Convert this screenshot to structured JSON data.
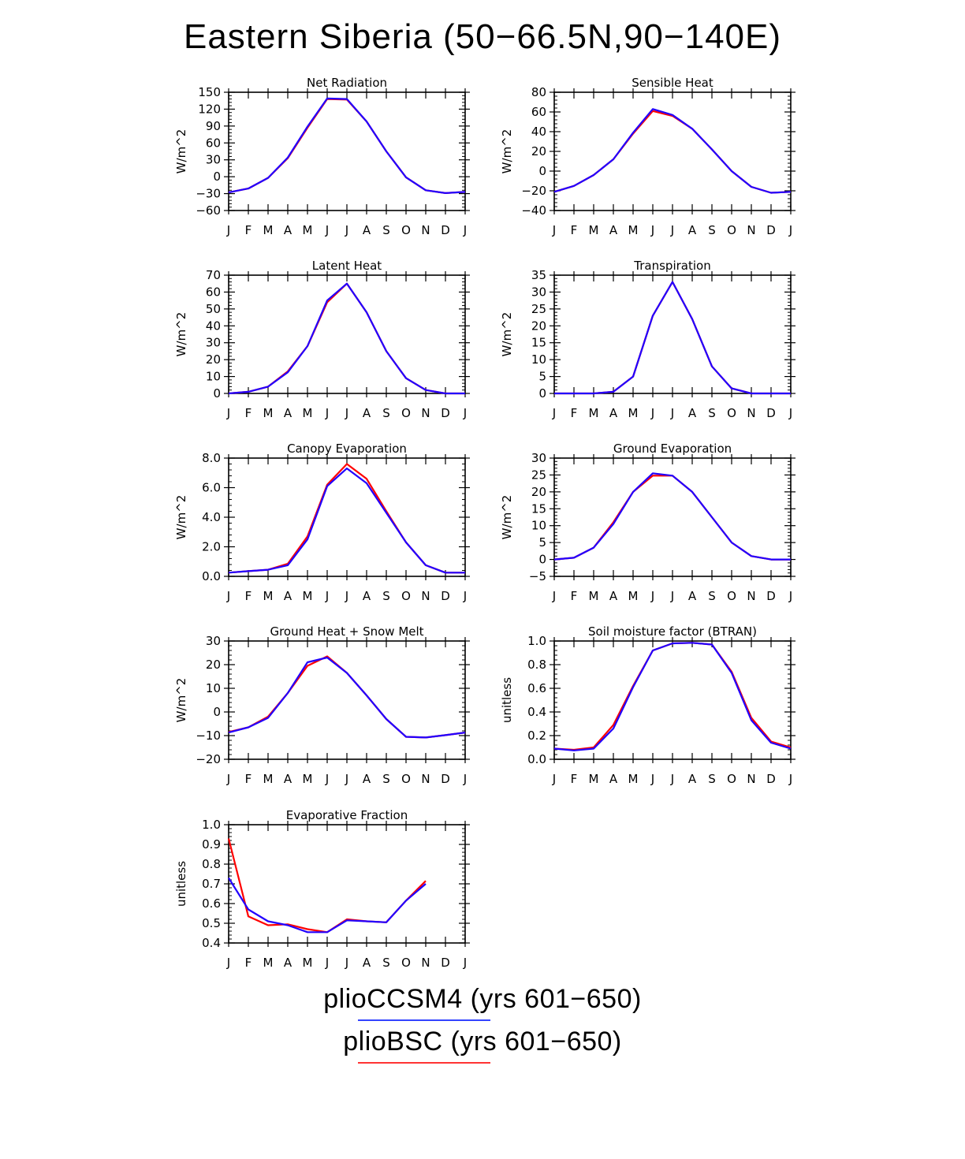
{
  "page_title": "Eastern Siberia (50−66.5N,90−140E)",
  "months": [
    "J",
    "F",
    "M",
    "A",
    "M",
    "J",
    "J",
    "A",
    "S",
    "O",
    "N",
    "D",
    "J"
  ],
  "legend": [
    {
      "label": "plioCCSM4 (yrs 601−650)",
      "color": "#3344ff"
    },
    {
      "label": "plioBSC (yrs 601−650)",
      "color": "#ff3333"
    }
  ],
  "series_colors": {
    "plioBSC": "#ff0000",
    "plioCCSM4": "#2200ff"
  },
  "chart_data": [
    {
      "type": "line",
      "title": "Net Radiation",
      "ylabel": "W/m^2",
      "ylim": [
        -60,
        150
      ],
      "yticks": [
        -60,
        -30,
        0,
        30,
        60,
        90,
        120,
        150
      ],
      "ytick_labels": [
        "−60",
        "−30",
        "0",
        "30",
        "60",
        "90",
        "120",
        "150"
      ],
      "series": [
        {
          "key": "plioBSC",
          "values": [
            -28,
            -21,
            -2,
            33,
            87,
            138,
            137,
            98,
            45,
            -1,
            -24,
            -29,
            -27
          ]
        },
        {
          "key": "plioCCSM4",
          "values": [
            -28,
            -21,
            -2,
            34,
            89,
            139,
            138,
            98,
            45,
            -1,
            -24,
            -29,
            -27
          ]
        }
      ]
    },
    {
      "type": "line",
      "title": "Sensible Heat",
      "ylabel": "W/m^2",
      "ylim": [
        -40,
        80
      ],
      "yticks": [
        -40,
        -20,
        0,
        20,
        40,
        60,
        80
      ],
      "ytick_labels": [
        "−40",
        "−20",
        "0",
        "20",
        "40",
        "60",
        "80"
      ],
      "series": [
        {
          "key": "plioBSC",
          "values": [
            -21,
            -15,
            -4,
            12,
            38,
            61,
            56,
            43,
            22,
            0,
            -16,
            -22,
            -21
          ]
        },
        {
          "key": "plioCCSM4",
          "values": [
            -21,
            -15,
            -4,
            12,
            39,
            63,
            57,
            43,
            22,
            0,
            -16,
            -22,
            -21
          ]
        }
      ]
    },
    {
      "type": "line",
      "title": "Latent Heat",
      "ylabel": "W/m^2",
      "ylim": [
        0,
        70
      ],
      "yticks": [
        0,
        10,
        20,
        30,
        40,
        50,
        60,
        70
      ],
      "ytick_labels": [
        "0",
        "10",
        "20",
        "30",
        "40",
        "50",
        "60",
        "70"
      ],
      "series": [
        {
          "key": "plioBSC",
          "values": [
            0,
            1,
            4,
            13,
            28,
            54,
            65,
            48,
            25,
            9,
            2,
            0,
            0
          ]
        },
        {
          "key": "plioCCSM4",
          "values": [
            0,
            1,
            4,
            12.5,
            28,
            55,
            65,
            48,
            25,
            9,
            2,
            0,
            0
          ]
        }
      ]
    },
    {
      "type": "line",
      "title": "Transpiration",
      "ylabel": "W/m^2",
      "ylim": [
        0,
        35
      ],
      "yticks": [
        0,
        5,
        10,
        15,
        20,
        25,
        30,
        35
      ],
      "ytick_labels": [
        "0",
        "5",
        "10",
        "15",
        "20",
        "25",
        "30",
        "35"
      ],
      "series": [
        {
          "key": "plioBSC",
          "values": [
            0,
            0,
            0,
            0.5,
            5,
            23,
            33,
            22,
            8,
            1.5,
            0,
            0,
            0
          ]
        },
        {
          "key": "plioCCSM4",
          "values": [
            0,
            0,
            0,
            0.5,
            5,
            23,
            33,
            22,
            8,
            1.5,
            0,
            0,
            0
          ]
        }
      ]
    },
    {
      "type": "line",
      "title": "Canopy Evaporation",
      "ylabel": "W/m^2",
      "ylim": [
        0,
        8
      ],
      "yticks": [
        0,
        2,
        4,
        6,
        8
      ],
      "ytick_labels": [
        "0.0",
        "2.0",
        "4.0",
        "6.0",
        "8.0"
      ],
      "series": [
        {
          "key": "plioBSC",
          "values": [
            0.25,
            0.35,
            0.45,
            0.85,
            2.7,
            6.2,
            7.6,
            6.6,
            4.4,
            2.3,
            0.75,
            0.25,
            0.25
          ]
        },
        {
          "key": "plioCCSM4",
          "values": [
            0.25,
            0.35,
            0.45,
            0.75,
            2.5,
            6.1,
            7.3,
            6.3,
            4.3,
            2.3,
            0.75,
            0.25,
            0.25
          ]
        }
      ]
    },
    {
      "type": "line",
      "title": "Ground Evaporation",
      "ylabel": "W/m^2",
      "ylim": [
        -5,
        30
      ],
      "yticks": [
        -5,
        0,
        5,
        10,
        15,
        20,
        25,
        30
      ],
      "ytick_labels": [
        "−5",
        "0",
        "5",
        "10",
        "15",
        "20",
        "25",
        "30"
      ],
      "series": [
        {
          "key": "plioBSC",
          "values": [
            0,
            0.5,
            3.5,
            11,
            20,
            24.8,
            24.8,
            20,
            12.5,
            5,
            1,
            0,
            0
          ]
        },
        {
          "key": "plioCCSM4",
          "values": [
            0,
            0.5,
            3.5,
            10.5,
            20,
            25.5,
            24.8,
            20,
            12.5,
            5,
            1,
            0,
            0
          ]
        }
      ]
    },
    {
      "type": "line",
      "title": "Ground Heat + Snow Melt",
      "ylabel": "W/m^2",
      "ylim": [
        -20,
        30
      ],
      "yticks": [
        -20,
        -10,
        0,
        10,
        20,
        30
      ],
      "ytick_labels": [
        "−20",
        "−10",
        "0",
        "10",
        "20",
        "30"
      ],
      "series": [
        {
          "key": "plioBSC",
          "values": [
            -8.5,
            -6.5,
            -2,
            8,
            19.5,
            23.5,
            16.5,
            7,
            -3,
            -10.5,
            -10.8,
            -9.8,
            -8.7
          ]
        },
        {
          "key": "plioCCSM4",
          "values": [
            -8.7,
            -6.5,
            -2.5,
            8,
            21,
            23,
            16.5,
            7,
            -3,
            -10.5,
            -10.8,
            -9.8,
            -8.7
          ]
        }
      ]
    },
    {
      "type": "line",
      "title": "Soil moisture factor (BTRAN)",
      "ylabel": "unitless",
      "ylim": [
        0,
        1
      ],
      "yticks": [
        0,
        0.2,
        0.4,
        0.6,
        0.8,
        1.0
      ],
      "ytick_labels": [
        "0.0",
        "0.2",
        "0.4",
        "0.6",
        "0.8",
        "1.0"
      ],
      "series": [
        {
          "key": "plioBSC",
          "values": [
            0.09,
            0.08,
            0.1,
            0.29,
            0.62,
            0.92,
            0.98,
            0.985,
            0.97,
            0.74,
            0.35,
            0.15,
            0.1
          ]
        },
        {
          "key": "plioCCSM4",
          "values": [
            0.09,
            0.075,
            0.09,
            0.26,
            0.61,
            0.92,
            0.98,
            0.985,
            0.97,
            0.73,
            0.33,
            0.14,
            0.09
          ]
        }
      ]
    },
    {
      "type": "line",
      "title": "Evaporative Fraction",
      "ylabel": "unitless",
      "ylim": [
        0.4,
        1
      ],
      "yticks": [
        0.4,
        0.5,
        0.6,
        0.7,
        0.8,
        0.9,
        1.0
      ],
      "ytick_labels": [
        "0.4",
        "0.5",
        "0.6",
        "0.7",
        "0.8",
        "0.9",
        "1.0"
      ],
      "series": [
        {
          "key": "plioBSC",
          "values": [
            0.93,
            0.535,
            0.49,
            0.495,
            0.47,
            0.455,
            0.52,
            0.51,
            0.505,
            0.615,
            0.715
          ]
        },
        {
          "key": "plioCCSM4",
          "values": [
            0.73,
            0.57,
            0.51,
            0.49,
            0.455,
            0.455,
            0.515,
            0.51,
            0.505,
            0.615,
            0.7
          ]
        }
      ]
    }
  ]
}
